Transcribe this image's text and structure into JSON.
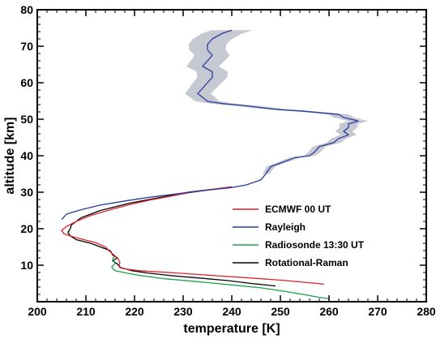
{
  "chart_data": {
    "type": "line",
    "title": "",
    "xlabel": "temperature [K]",
    "ylabel": "altitude [km]",
    "xlim": [
      200,
      280
    ],
    "ylim": [
      0,
      80
    ],
    "x_ticks": [
      200,
      210,
      220,
      230,
      240,
      250,
      260,
      270,
      280
    ],
    "y_ticks": [
      10,
      20,
      30,
      40,
      50,
      60,
      70,
      80
    ],
    "grid": false,
    "legend_position": "lower-right",
    "uncertainty_band_color": "#c6c9d2",
    "series": [
      {
        "name": "ECMWF 00 UT",
        "color": "#e0202a",
        "points": [
          [
            240,
            31.5
          ],
          [
            236,
            30.8
          ],
          [
            231,
            29.8
          ],
          [
            227,
            28.8
          ],
          [
            223,
            27.8
          ],
          [
            219,
            26.6
          ],
          [
            215,
            25.2
          ],
          [
            211,
            23.6
          ],
          [
            208,
            22
          ],
          [
            206,
            20.6
          ],
          [
            205,
            19.5
          ],
          [
            205.5,
            18.6
          ],
          [
            207,
            17.9
          ],
          [
            209,
            17.2
          ],
          [
            212,
            16.2
          ],
          [
            214,
            15
          ],
          [
            215.3,
            13.3
          ],
          [
            216.5,
            12
          ],
          [
            217,
            10.8
          ],
          [
            216.8,
            9.8
          ],
          [
            217.5,
            9.1
          ],
          [
            221,
            8.5
          ],
          [
            228,
            7.9
          ],
          [
            236,
            7.2
          ],
          [
            244,
            6.5
          ],
          [
            251,
            5.8
          ],
          [
            256,
            5.2
          ],
          [
            259,
            4.8
          ]
        ]
      },
      {
        "name": "Rayleigh",
        "color": "#2a3c9c",
        "points": [
          [
            205,
            22.5
          ],
          [
            206,
            24
          ],
          [
            209,
            25.2
          ],
          [
            213,
            26.5
          ],
          [
            218,
            27.6
          ],
          [
            223,
            28.6
          ],
          [
            229,
            29.6
          ],
          [
            234,
            30.4
          ],
          [
            240,
            31.3
          ],
          [
            243,
            32
          ],
          [
            246,
            33.4
          ],
          [
            247,
            35
          ],
          [
            248,
            37
          ],
          [
            251,
            38.5
          ],
          [
            253,
            39.5
          ],
          [
            256,
            40
          ],
          [
            257,
            41
          ],
          [
            258,
            42.5
          ],
          [
            261,
            43.6
          ],
          [
            262,
            44.7
          ],
          [
            264,
            45.7
          ],
          [
            263,
            46.7
          ],
          [
            264,
            47.7
          ],
          [
            264,
            48.7
          ],
          [
            266,
            49.5
          ],
          [
            263,
            50.5
          ],
          [
            262,
            51.3
          ],
          [
            258,
            51.8
          ],
          [
            254,
            52.3
          ],
          [
            250,
            52.6
          ],
          [
            246,
            53.2
          ],
          [
            242,
            53.8
          ],
          [
            238,
            54.3
          ],
          [
            235,
            54.9
          ],
          [
            234,
            56
          ],
          [
            233,
            57
          ],
          [
            234,
            58.5
          ],
          [
            235,
            60
          ],
          [
            236,
            61.5
          ],
          [
            236,
            63
          ],
          [
            234,
            64.5
          ],
          [
            235,
            66
          ],
          [
            236,
            67.5
          ],
          [
            235,
            69
          ],
          [
            235,
            70.5
          ],
          [
            236,
            72
          ],
          [
            238,
            73.5
          ],
          [
            240,
            74.4
          ]
        ]
      },
      {
        "name": "Radiosonde 13:30 UT",
        "color": "#1aa14a",
        "points": [
          [
            260,
            0.8
          ],
          [
            258,
            1.2
          ],
          [
            255,
            1.9
          ],
          [
            251,
            2.8
          ],
          [
            246,
            3.8
          ],
          [
            240,
            4.6
          ],
          [
            233,
            5.5
          ],
          [
            226,
            6.3
          ],
          [
            221,
            7.2
          ],
          [
            218.5,
            7.8
          ],
          [
            216,
            8.5
          ],
          [
            215.3,
            9.5
          ],
          [
            216,
            10.5
          ],
          [
            215.5,
            11.8
          ],
          [
            216,
            12.5
          ]
        ]
      },
      {
        "name": "Rotational-Raman",
        "color": "#000000",
        "points": [
          [
            249,
            4.3
          ],
          [
            244,
            5
          ],
          [
            239,
            5.8
          ],
          [
            234,
            6.4
          ],
          [
            228,
            7.1
          ],
          [
            223,
            7.8
          ],
          [
            219.5,
            8.5
          ],
          [
            217,
            9.4
          ],
          [
            216.5,
            10.3
          ],
          [
            215.5,
            11.2
          ],
          [
            216.5,
            12
          ],
          [
            215.5,
            12.8
          ],
          [
            215,
            14
          ],
          [
            213,
            15
          ],
          [
            211,
            16
          ],
          [
            208,
            17
          ],
          [
            206.8,
            18
          ],
          [
            206.3,
            19
          ],
          [
            206.8,
            20
          ],
          [
            207,
            21
          ],
          [
            208,
            22
          ],
          [
            209,
            23
          ],
          [
            211,
            24
          ],
          [
            213,
            25
          ],
          [
            216,
            26
          ],
          [
            219,
            27
          ],
          [
            223,
            28
          ],
          [
            227,
            29
          ],
          [
            231,
            30
          ],
          [
            236,
            30.8
          ],
          [
            240,
            31.3
          ]
        ]
      }
    ]
  }
}
